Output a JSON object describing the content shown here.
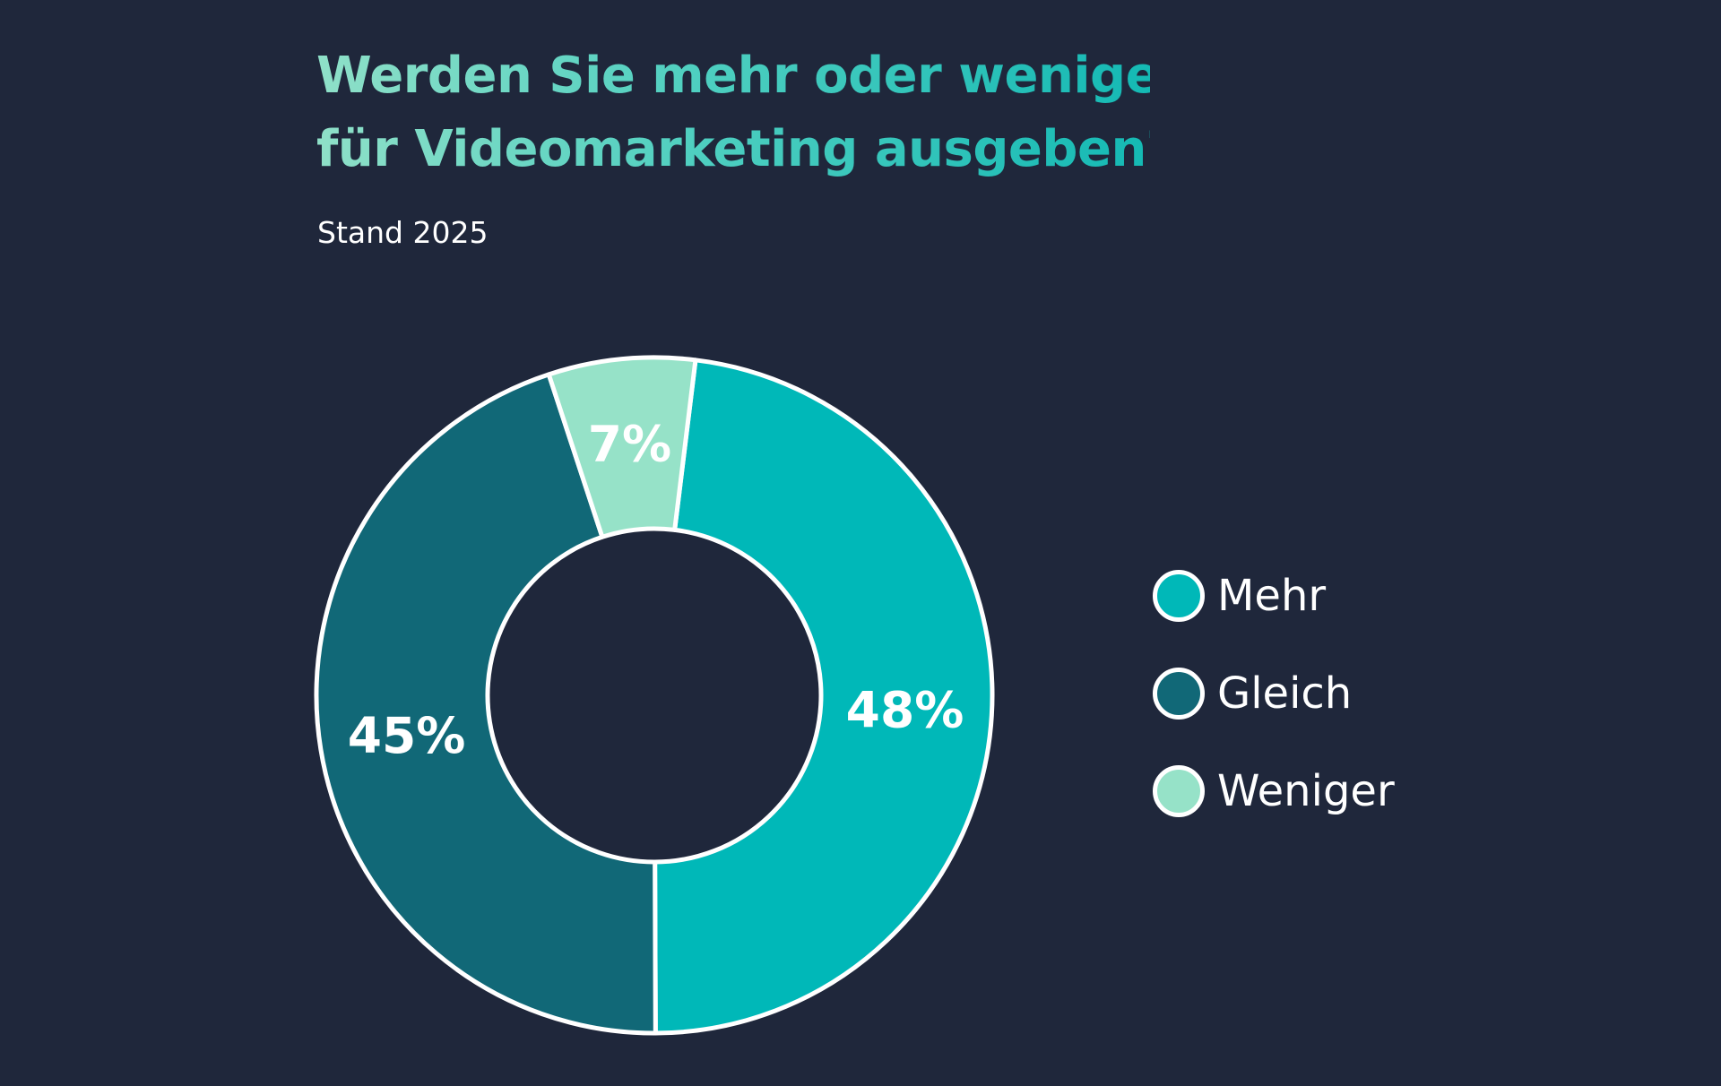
{
  "chart_data": {
    "type": "pie",
    "variant": "donut",
    "title_lines": [
      "Werden Sie mehr oder weniger",
      "für Videomarketing ausgeben?"
    ],
    "subtitle": "Stand 2025",
    "categories": [
      "Mehr",
      "Gleich",
      "Weniger"
    ],
    "values": [
      48,
      45,
      7
    ],
    "value_labels": [
      "48%",
      "45%",
      "7%"
    ],
    "colors": [
      "#00b8b8",
      "#116877",
      "#96e2c8"
    ],
    "legend_position": "right"
  },
  "colors": {
    "background": "#1f273b",
    "outline": "#ffffff",
    "text": "#ffffff"
  }
}
